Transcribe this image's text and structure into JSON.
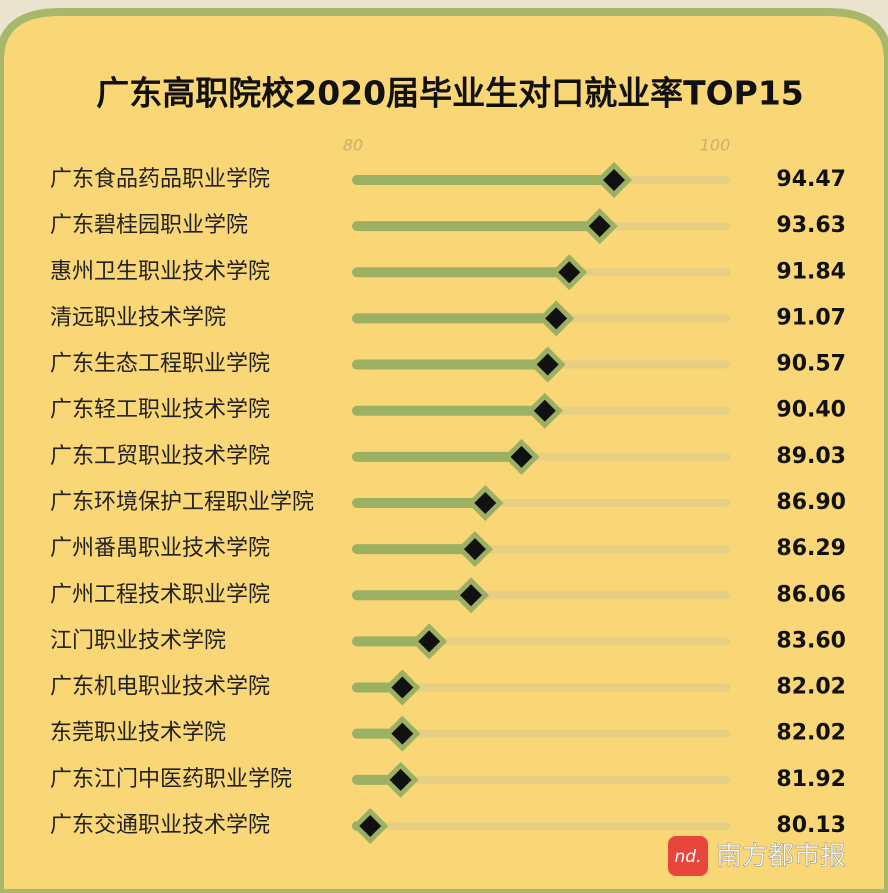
{
  "chart_data": {
    "type": "lollipop",
    "title": "广东高职院校2020届毕业生对口就业率TOP15",
    "categories": [
      "广东食品药品职业学院",
      "广东碧桂园职业学院",
      "惠州卫生职业技术学院",
      "清远职业技术学院",
      "广东生态工程职业学院",
      "广东轻工职业技术学院",
      "广东工贸职业技术学院",
      "广东环境保护工程职业学院",
      "广州番禺职业技术学院",
      "广州工程技术职业学院",
      "江门职业技术学院",
      "广东机电职业技术学院",
      "东莞职业技术学院",
      "广东江门中医药职业学院",
      "广东交通职业技术学院"
    ],
    "values": [
      94.47,
      93.63,
      91.84,
      91.07,
      90.57,
      90.4,
      89.03,
      86.9,
      86.29,
      86.06,
      83.6,
      82.02,
      82.02,
      81.92,
      80.13
    ],
    "value_labels": [
      "94.47",
      "93.63",
      "91.84",
      "91.07",
      "90.57",
      "90.40",
      "89.03",
      "86.90",
      "86.29",
      "86.06",
      "83.60",
      "82.02",
      "82.02",
      "81.92",
      "80.13"
    ],
    "color": "#9cb064",
    "xlim": [
      80,
      100
    ],
    "xticks": [
      80,
      100
    ]
  },
  "watermark": {
    "logo": "nd.",
    "text": "南方都市报"
  }
}
